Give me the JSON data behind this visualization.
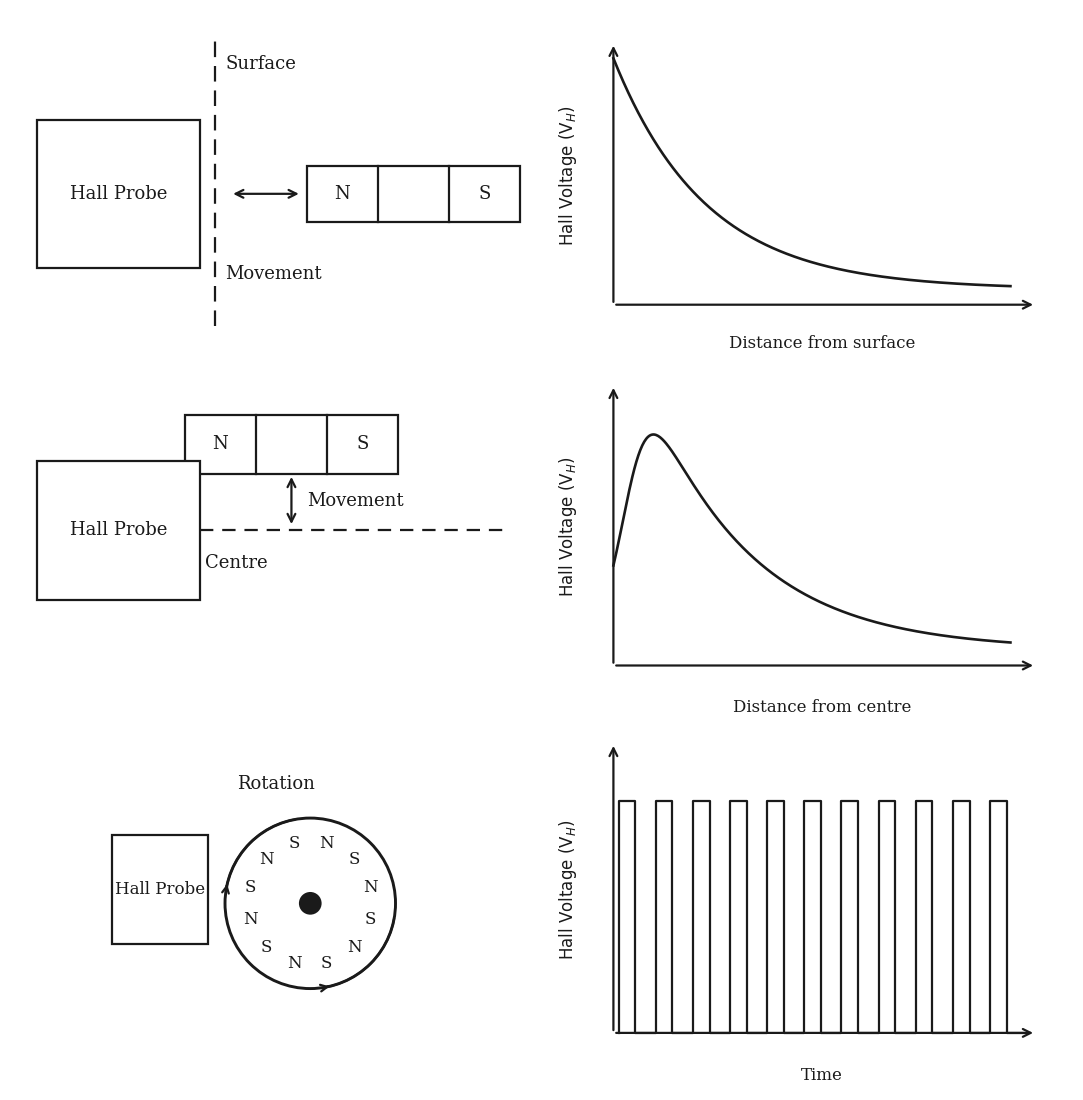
{
  "bg_color": "#ffffff",
  "line_color": "#1a1a1a",
  "line_width": 1.6,
  "font_size": 13,
  "row1": {
    "hall_probe_label": "Hall Probe",
    "surface_label": "Surface",
    "movement_label": "Movement",
    "magnet_n": "N",
    "magnet_s": "S",
    "graph_ylabel": "Hall Voltage (V",
    "graph_ylabel_sub": "H",
    "graph_ylabel_end": ")",
    "graph_xlabel": "Distance from surface"
  },
  "row2": {
    "hall_probe_label": "Hall Probe",
    "centre_label": "Centre",
    "movement_label": "Movement",
    "magnet_n": "N",
    "magnet_s": "S",
    "graph_ylabel": "Hall Voltage (V",
    "graph_ylabel_sub": "H",
    "graph_ylabel_end": ")",
    "graph_xlabel": "Distance from centre"
  },
  "row3": {
    "hall_probe_label": "Hall Probe",
    "rotation_label": "Rotation",
    "pole_labels": [
      "N",
      "S",
      "N",
      "S",
      "N",
      "S",
      "N",
      "S",
      "N",
      "S",
      "N",
      "S"
    ],
    "pole_angles": [
      75,
      45,
      15,
      345,
      315,
      285,
      255,
      225,
      195,
      165,
      135,
      105
    ],
    "graph_ylabel": "Hall Voltage (V",
    "graph_ylabel_sub": "H",
    "graph_ylabel_end": ")",
    "graph_xlabel": "Time"
  }
}
